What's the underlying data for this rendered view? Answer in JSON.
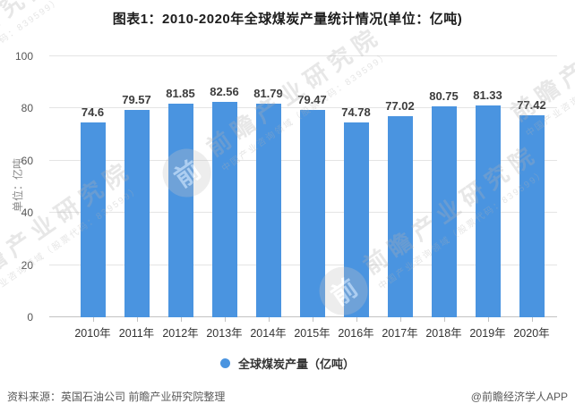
{
  "title": "图表1：2010-2020年全球煤炭产量统计情况(单位：亿吨)",
  "chart_data": {
    "type": "bar",
    "title": "图表1：2010-2020年全球煤炭产量统计情况(单位：亿吨)",
    "categories": [
      "2010年",
      "2011年",
      "2012年",
      "2013年",
      "2014年",
      "2015年",
      "2016年",
      "2017年",
      "2018年",
      "2019年",
      "2020年"
    ],
    "values": [
      74.6,
      79.57,
      81.85,
      82.56,
      81.79,
      79.47,
      74.78,
      77.02,
      80.75,
      81.33,
      77.42
    ],
    "series_name": "全球煤炭产量（亿吨）",
    "xlabel": "",
    "ylabel": "单位：亿吨",
    "ylim": [
      0,
      100
    ],
    "yticks": [
      0,
      20,
      40,
      60,
      80,
      100
    ],
    "grid": true,
    "value_labels": true,
    "legend_position": "bottom",
    "bar_color": "#4a94e0"
  },
  "legend": {
    "label": "全球煤炭产量（亿吨）"
  },
  "footer": {
    "source": "资料来源：英国石油公司 前瞻产业研究院整理",
    "credit": "@前瞻经济学人APP"
  },
  "watermark": {
    "logo_char": "前",
    "main": "前瞻产业研究院",
    "sub": "中国产业咨询领域（股票代码：839599）"
  }
}
